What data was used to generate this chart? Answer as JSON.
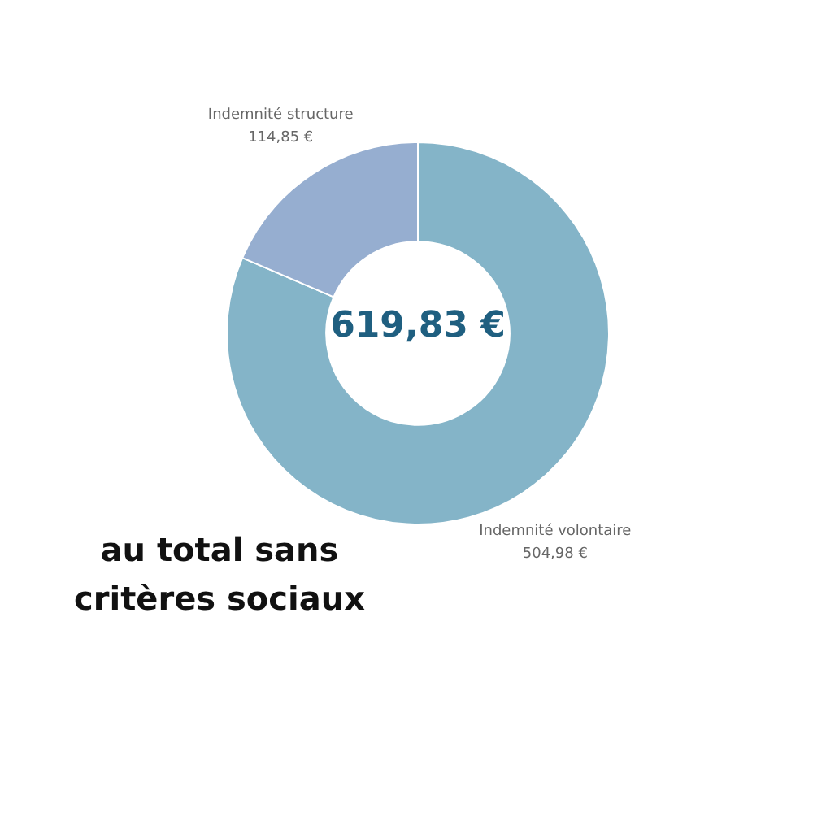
{
  "chart_data": {
    "type": "donut",
    "title": "au total sans critères sociaux",
    "categories": [
      "Indemnité volontaire",
      "Indemnité structure"
    ],
    "values": [
      504.98,
      114.85
    ],
    "value_labels": [
      "504,98 €",
      "114,85 €"
    ],
    "colors": [
      "#84b4c8",
      "#96aed0"
    ],
    "annotations": [
      "619,83 €"
    ],
    "legend": false
  }
}
